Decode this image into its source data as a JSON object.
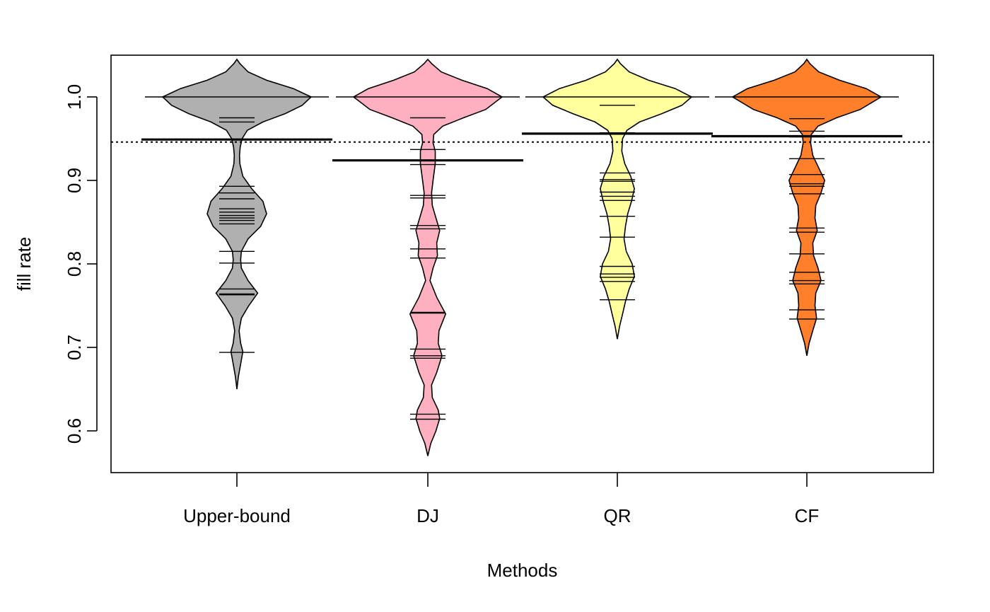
{
  "chart_data": {
    "type": "beanplot",
    "xlabel": "Methods",
    "ylabel": "fill rate",
    "ylim": [
      0.55,
      1.05
    ],
    "y_ticks": [
      0.6,
      0.7,
      0.8,
      0.9,
      1.0
    ],
    "y_tick_labels": [
      "0.6",
      "0.7",
      "0.8",
      "0.9",
      "1.0"
    ],
    "grid": false,
    "reference_line": 0.946,
    "categories": [
      "Upper-bound",
      "DJ",
      "QR",
      "CF"
    ],
    "series": [
      {
        "category": "Upper-bound",
        "color": "#b0b0b0",
        "mean": 0.949,
        "range": [
          0.65,
          1.045
        ],
        "observations": [
          1.0,
          0.975,
          0.97,
          0.893,
          0.885,
          0.878,
          0.866,
          0.862,
          0.858,
          0.855,
          0.852,
          0.848,
          0.815,
          0.801,
          0.77,
          0.764,
          0.763,
          0.694
        ],
        "density": [
          [
            0.65,
            0.0
          ],
          [
            0.665,
            0.02
          ],
          [
            0.68,
            0.05
          ],
          [
            0.695,
            0.08
          ],
          [
            0.705,
            0.05
          ],
          [
            0.72,
            0.03
          ],
          [
            0.735,
            0.06
          ],
          [
            0.75,
            0.16
          ],
          [
            0.765,
            0.28
          ],
          [
            0.78,
            0.15
          ],
          [
            0.795,
            0.06
          ],
          [
            0.805,
            0.05
          ],
          [
            0.815,
            0.06
          ],
          [
            0.83,
            0.15
          ],
          [
            0.845,
            0.32
          ],
          [
            0.86,
            0.4
          ],
          [
            0.875,
            0.35
          ],
          [
            0.89,
            0.2
          ],
          [
            0.905,
            0.08
          ],
          [
            0.92,
            0.04
          ],
          [
            0.93,
            0.035
          ],
          [
            0.94,
            0.045
          ],
          [
            0.95,
            0.07
          ],
          [
            0.96,
            0.14
          ],
          [
            0.97,
            0.35
          ],
          [
            0.98,
            0.65
          ],
          [
            0.99,
            0.88
          ],
          [
            1.0,
            1.0
          ],
          [
            1.01,
            0.76
          ],
          [
            1.02,
            0.4
          ],
          [
            1.03,
            0.15
          ],
          [
            1.04,
            0.04
          ],
          [
            1.045,
            0.0
          ]
        ]
      },
      {
        "category": "DJ",
        "color": "#ffb0c0",
        "mean": 0.924,
        "range": [
          0.57,
          1.045
        ],
        "observations": [
          1.0,
          0.975,
          0.937,
          0.919,
          0.882,
          0.879,
          0.846,
          0.842,
          0.818,
          0.807,
          0.742,
          0.741,
          0.698,
          0.69,
          0.687,
          0.62,
          0.614
        ],
        "density": [
          [
            0.57,
            0.0
          ],
          [
            0.585,
            0.04
          ],
          [
            0.6,
            0.11
          ],
          [
            0.615,
            0.16
          ],
          [
            0.625,
            0.14
          ],
          [
            0.64,
            0.06
          ],
          [
            0.655,
            0.05
          ],
          [
            0.67,
            0.12
          ],
          [
            0.69,
            0.19
          ],
          [
            0.705,
            0.14
          ],
          [
            0.72,
            0.15
          ],
          [
            0.74,
            0.24
          ],
          [
            0.76,
            0.12
          ],
          [
            0.78,
            0.03
          ],
          [
            0.795,
            0.07
          ],
          [
            0.81,
            0.13
          ],
          [
            0.825,
            0.12
          ],
          [
            0.84,
            0.16
          ],
          [
            0.855,
            0.11
          ],
          [
            0.87,
            0.06
          ],
          [
            0.885,
            0.05
          ],
          [
            0.9,
            0.07
          ],
          [
            0.92,
            0.1
          ],
          [
            0.935,
            0.1
          ],
          [
            0.945,
            0.07
          ],
          [
            0.955,
            0.08
          ],
          [
            0.965,
            0.2
          ],
          [
            0.975,
            0.48
          ],
          [
            0.985,
            0.78
          ],
          [
            1.0,
            1.0
          ],
          [
            1.01,
            0.8
          ],
          [
            1.02,
            0.46
          ],
          [
            1.03,
            0.18
          ],
          [
            1.04,
            0.05
          ],
          [
            1.045,
            0.0
          ]
        ]
      },
      {
        "category": "QR",
        "color": "#ffff9e",
        "mean": 0.956,
        "range": [
          0.71,
          1.045
        ],
        "observations": [
          1.0,
          0.99,
          0.957,
          0.909,
          0.901,
          0.899,
          0.886,
          0.881,
          0.876,
          0.857,
          0.832,
          0.797,
          0.788,
          0.784,
          0.779,
          0.757
        ],
        "density": [
          [
            0.71,
            0.0
          ],
          [
            0.725,
            0.03
          ],
          [
            0.74,
            0.07
          ],
          [
            0.755,
            0.11
          ],
          [
            0.77,
            0.16
          ],
          [
            0.785,
            0.23
          ],
          [
            0.8,
            0.2
          ],
          [
            0.815,
            0.12
          ],
          [
            0.83,
            0.09
          ],
          [
            0.845,
            0.11
          ],
          [
            0.86,
            0.14
          ],
          [
            0.875,
            0.19
          ],
          [
            0.89,
            0.23
          ],
          [
            0.905,
            0.18
          ],
          [
            0.92,
            0.1
          ],
          [
            0.935,
            0.06
          ],
          [
            0.95,
            0.07
          ],
          [
            0.96,
            0.13
          ],
          [
            0.97,
            0.3
          ],
          [
            0.98,
            0.6
          ],
          [
            0.99,
            0.87
          ],
          [
            1.0,
            1.0
          ],
          [
            1.01,
            0.78
          ],
          [
            1.02,
            0.42
          ],
          [
            1.03,
            0.16
          ],
          [
            1.04,
            0.04
          ],
          [
            1.045,
            0.0
          ]
        ]
      },
      {
        "category": "CF",
        "color": "#ff7f2a",
        "mean": 0.953,
        "range": [
          0.69,
          1.045
        ],
        "observations": [
          1.0,
          0.974,
          0.959,
          0.952,
          0.926,
          0.907,
          0.896,
          0.893,
          0.884,
          0.843,
          0.838,
          0.812,
          0.79,
          0.78,
          0.776,
          0.745,
          0.734
        ],
        "density": [
          [
            0.69,
            0.0
          ],
          [
            0.705,
            0.03
          ],
          [
            0.72,
            0.08
          ],
          [
            0.735,
            0.13
          ],
          [
            0.75,
            0.11
          ],
          [
            0.765,
            0.12
          ],
          [
            0.78,
            0.19
          ],
          [
            0.795,
            0.15
          ],
          [
            0.81,
            0.09
          ],
          [
            0.825,
            0.08
          ],
          [
            0.84,
            0.14
          ],
          [
            0.855,
            0.11
          ],
          [
            0.87,
            0.12
          ],
          [
            0.885,
            0.19
          ],
          [
            0.9,
            0.24
          ],
          [
            0.915,
            0.16
          ],
          [
            0.93,
            0.08
          ],
          [
            0.945,
            0.05
          ],
          [
            0.955,
            0.06
          ],
          [
            0.965,
            0.15
          ],
          [
            0.975,
            0.4
          ],
          [
            0.985,
            0.72
          ],
          [
            1.0,
            1.0
          ],
          [
            1.01,
            0.8
          ],
          [
            1.02,
            0.44
          ],
          [
            1.03,
            0.16
          ],
          [
            1.04,
            0.04
          ],
          [
            1.045,
            0.0
          ]
        ]
      }
    ]
  }
}
